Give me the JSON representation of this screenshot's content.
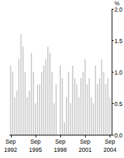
{
  "chart_data": {
    "type": "bar",
    "y_label": "%",
    "categories": [
      "Sep 1992",
      null,
      null,
      null,
      null,
      null,
      null,
      null,
      null,
      null,
      null,
      null,
      "Sep 1995",
      null,
      null,
      null,
      null,
      null,
      null,
      null,
      null,
      null,
      null,
      null,
      "Sep 1998",
      null,
      null,
      null,
      null,
      null,
      null,
      null,
      null,
      null,
      null,
      null,
      "Sep 2001",
      null,
      null,
      null,
      null,
      null,
      null,
      null,
      null,
      null,
      null,
      null,
      "Sep 2004"
    ],
    "values": [
      1.1,
      1.0,
      0.6,
      0.7,
      1.2,
      1.6,
      1.4,
      1.0,
      0.6,
      0.7,
      1.3,
      1.0,
      0.5,
      0.8,
      0.8,
      1.0,
      1.1,
      1.2,
      1.4,
      1.3,
      1.0,
      0.5,
      0.8,
      0.0,
      1.1,
      0.9,
      0.2,
      0.6,
      1.0,
      0.5,
      1.1,
      0.9,
      0.8,
      0.6,
      0.9,
      1.0,
      1.2,
      0.8,
      0.9,
      0.6,
      0.5,
      1.1,
      0.8,
      0.9,
      1.2,
      1.0,
      0.8,
      0.9,
      0.6
    ],
    "color": "#c8c8c8",
    "ylim": [
      0,
      2
    ],
    "yticks": [
      {
        "value": 0,
        "label": "0.0"
      },
      {
        "value": 0.5,
        "label": "0.5"
      },
      {
        "value": 1,
        "label": "1.0"
      },
      {
        "value": 1.5,
        "label": "1.5"
      },
      {
        "value": 2,
        "label": "2.0"
      }
    ],
    "grid": false,
    "tick_labels": true
  }
}
